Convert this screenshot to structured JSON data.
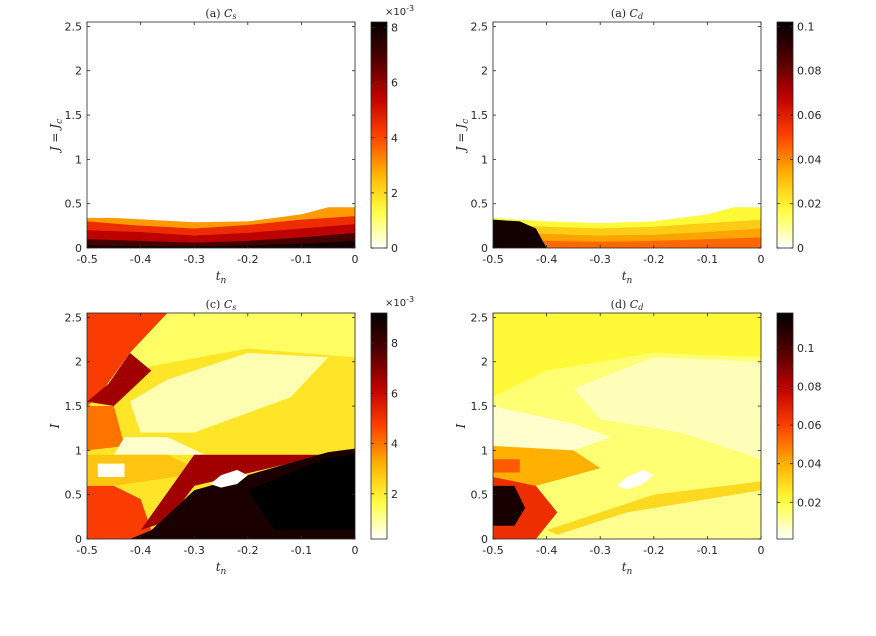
{
  "colormap": "hot-reversed",
  "colormap_stops": [
    "#ffffff",
    "#ffff3c",
    "#ffb000",
    "#ff4000",
    "#c00000",
    "#500000",
    "#000000"
  ],
  "chart_data": [
    {
      "type": "heatmap",
      "title": "(a) C_s",
      "title_main": "(a) ",
      "title_var": "C",
      "title_sub": "s",
      "xlabel_main": "t",
      "xlabel_sub": "n",
      "ylabel": "J = J_c",
      "ylabel_main": "J = J",
      "ylabel_sub": "c",
      "xlim": [
        -0.5,
        0
      ],
      "ylim": [
        0,
        2.55
      ],
      "xticks": [
        "-0.5",
        "-0.4",
        "-0.3",
        "-0.2",
        "-0.1",
        "0"
      ],
      "xtick_values": [
        -0.5,
        -0.4,
        -0.3,
        -0.2,
        -0.1,
        0
      ],
      "yticks": [
        "0",
        "0.5",
        "1",
        "1.5",
        "2",
        "2.5"
      ],
      "ytick_values": [
        0,
        0.5,
        1,
        1.5,
        2,
        2.5
      ],
      "colorbar": {
        "range": [
          0,
          0.0082
        ],
        "ticks": [
          "0",
          "2",
          "4",
          "6",
          "8"
        ],
        "tick_values": [
          0,
          0.002,
          0.004,
          0.006,
          0.008
        ],
        "multiplier": "×10",
        "multiplier_exp": "-3"
      },
      "bands": [
        {
          "x": [
            -0.5,
            -0.45,
            -0.3,
            -0.2,
            -0.1,
            -0.05,
            0
          ],
          "y": [
            0.34,
            0.34,
            0.29,
            0.3,
            0.38,
            0.46,
            0.46
          ],
          "value": 0.003
        },
        {
          "x": [
            -0.5,
            -0.42,
            -0.3,
            -0.2,
            -0.1,
            0
          ],
          "y": [
            0.3,
            0.26,
            0.22,
            0.26,
            0.32,
            0.36
          ],
          "value": 0.0045
        },
        {
          "x": [
            -0.5,
            -0.4,
            -0.3,
            -0.2,
            -0.1,
            0
          ],
          "y": [
            0.2,
            0.18,
            0.14,
            0.17,
            0.22,
            0.27
          ],
          "value": 0.0055
        },
        {
          "x": [
            -0.5,
            -0.4,
            -0.3,
            -0.2,
            -0.1,
            0
          ],
          "y": [
            0.1,
            0.08,
            0.06,
            0.08,
            0.12,
            0.17
          ],
          "value": 0.007
        },
        {
          "x": [
            -0.5,
            -0.4,
            -0.3,
            -0.2,
            -0.1,
            0
          ],
          "y": [
            0.03,
            0.02,
            0.02,
            0.03,
            0.05,
            0.08
          ],
          "value": 0.0079
        }
      ]
    },
    {
      "type": "heatmap",
      "title": "(a) C_d",
      "title_main": "(a) ",
      "title_var": "C",
      "title_sub": "d",
      "xlabel_main": "t",
      "xlabel_sub": "n",
      "ylabel": "J = J_c",
      "ylabel_main": "J = J",
      "ylabel_sub": "c",
      "xlim": [
        -0.5,
        0
      ],
      "ylim": [
        0,
        2.55
      ],
      "xticks": [
        "-0.5",
        "-0.4",
        "-0.3",
        "-0.2",
        "-0.1",
        "0"
      ],
      "xtick_values": [
        -0.5,
        -0.4,
        -0.3,
        -0.2,
        -0.1,
        0
      ],
      "yticks": [
        "0",
        "0.5",
        "1",
        "1.5",
        "2",
        "2.5"
      ],
      "ytick_values": [
        0,
        0.5,
        1,
        1.5,
        2,
        2.5
      ],
      "colorbar": {
        "range": [
          0,
          0.102
        ],
        "ticks": [
          "0",
          "0.02",
          "0.04",
          "0.06",
          "0.08",
          "0.1"
        ],
        "tick_values": [
          0,
          0.02,
          0.04,
          0.06,
          0.08,
          0.1
        ],
        "multiplier": "",
        "multiplier_exp": ""
      },
      "bands": [
        {
          "x": [
            -0.5,
            -0.4,
            -0.3,
            -0.2,
            -0.1,
            -0.05,
            0
          ],
          "y": [
            0.34,
            0.3,
            0.28,
            0.3,
            0.38,
            0.46,
            0.46
          ],
          "value": 0.018
        },
        {
          "x": [
            -0.5,
            -0.4,
            -0.3,
            -0.2,
            -0.1,
            0
          ],
          "y": [
            0.27,
            0.24,
            0.22,
            0.24,
            0.28,
            0.32
          ],
          "value": 0.028
        },
        {
          "x": [
            -0.5,
            -0.4,
            -0.3,
            -0.2,
            -0.1,
            0
          ],
          "y": [
            0.18,
            0.16,
            0.14,
            0.15,
            0.18,
            0.22
          ],
          "value": 0.036
        },
        {
          "x": [
            -0.5,
            -0.4,
            -0.3,
            -0.2,
            -0.1,
            0
          ],
          "y": [
            0.09,
            0.08,
            0.07,
            0.08,
            0.1,
            0.12
          ],
          "value": 0.045
        },
        {
          "x": [
            -0.5,
            -0.45,
            -0.42,
            -0.4,
            -0.5
          ],
          "y": [
            0.32,
            0.3,
            0.22,
            0.0,
            0.0
          ],
          "value": 0.098,
          "closed": true
        }
      ]
    },
    {
      "type": "heatmap",
      "title": "(c) C_s",
      "title_main": "(c) ",
      "title_var": "C",
      "title_sub": "s",
      "xlabel_main": "t",
      "xlabel_sub": "n",
      "ylabel": "I",
      "ylabel_main": "I",
      "ylabel_sub": "",
      "xlim": [
        -0.5,
        0
      ],
      "ylim": [
        0,
        2.55
      ],
      "xticks": [
        "-0.5",
        "-0.4",
        "-0.3",
        "-0.2",
        "-0.1",
        "0"
      ],
      "xtick_values": [
        -0.5,
        -0.4,
        -0.3,
        -0.2,
        -0.1,
        0
      ],
      "yticks": [
        "0",
        "0.5",
        "1",
        "1.5",
        "2",
        "2.5"
      ],
      "ytick_values": [
        0,
        0.5,
        1,
        1.5,
        2,
        2.5
      ],
      "colorbar": {
        "range": [
          0.0002,
          0.0092
        ],
        "ticks": [
          "2",
          "4",
          "6",
          "8"
        ],
        "tick_values": [
          0.002,
          0.004,
          0.006,
          0.008
        ],
        "multiplier": "×10",
        "multiplier_exp": "-3"
      },
      "background_value": 0.0022,
      "regions": [
        {
          "points": [
            [
              -0.5,
              2.55
            ],
            [
              0,
              2.55
            ],
            [
              0,
              2.05
            ],
            [
              -0.2,
              2.15
            ],
            [
              -0.38,
              1.95
            ],
            [
              -0.5,
              1.5
            ]
          ],
          "value": 0.0014
        },
        {
          "points": [
            [
              -0.5,
              2.55
            ],
            [
              -0.35,
              2.55
            ],
            [
              -0.42,
              2.1
            ],
            [
              -0.48,
              1.6
            ],
            [
              -0.5,
              1.5
            ]
          ],
          "value": 0.0048
        },
        {
          "points": [
            [
              -0.5,
              1.55
            ],
            [
              -0.46,
              1.75
            ],
            [
              -0.42,
              2.1
            ],
            [
              -0.38,
              1.9
            ],
            [
              -0.45,
              1.5
            ]
          ],
          "value": 0.0066
        },
        {
          "points": [
            [
              -0.5,
              1.5
            ],
            [
              -0.45,
              1.5
            ],
            [
              -0.43,
              1.05
            ],
            [
              -0.5,
              1.0
            ]
          ],
          "value": 0.004
        },
        {
          "points": [
            [
              -0.42,
              1.55
            ],
            [
              -0.35,
              1.8
            ],
            [
              -0.2,
              2.1
            ],
            [
              -0.05,
              2.05
            ],
            [
              -0.12,
              1.6
            ],
            [
              -0.3,
              1.2
            ],
            [
              -0.4,
              1.2
            ]
          ],
          "value": 0.0008
        },
        {
          "points": [
            [
              -0.43,
              1.15
            ],
            [
              -0.35,
              1.15
            ],
            [
              -0.28,
              0.95
            ],
            [
              -0.45,
              0.95
            ]
          ],
          "value": 0.0006
        },
        {
          "points": [
            [
              -0.5,
              0.95
            ],
            [
              -0.35,
              0.95
            ],
            [
              -0.28,
              0.75
            ],
            [
              -0.45,
              0.6
            ],
            [
              -0.5,
              0.6
            ]
          ],
          "value": 0.0028
        },
        {
          "points": [
            [
              -0.48,
              0.85
            ],
            [
              -0.43,
              0.85
            ],
            [
              -0.43,
              0.7
            ],
            [
              -0.48,
              0.7
            ]
          ],
          "value": 0.0003
        },
        {
          "points": [
            [
              -0.5,
              0.6
            ],
            [
              -0.45,
              0.6
            ],
            [
              -0.4,
              0.45
            ],
            [
              -0.38,
              0.1
            ],
            [
              -0.42,
              0.0
            ],
            [
              -0.5,
              0.0
            ]
          ],
          "value": 0.0048
        },
        {
          "points": [
            [
              -0.2,
              0.95
            ],
            [
              -0.05,
              0.95
            ],
            [
              -0.02,
              1.0
            ],
            [
              -0.3,
              0.6
            ],
            [
              -0.35,
              0.2
            ],
            [
              -0.4,
              0.1
            ],
            [
              -0.3,
              0.95
            ]
          ],
          "value": 0.0066
        },
        {
          "points": [
            [
              -0.42,
              0.0
            ],
            [
              0,
              0.0
            ],
            [
              0,
              1.02
            ],
            [
              -0.05,
              0.98
            ],
            [
              -0.3,
              0.55
            ],
            [
              -0.38,
              0.1
            ]
          ],
          "value": 0.0087
        },
        {
          "points": [
            [
              -0.15,
              0.1
            ],
            [
              0,
              0.1
            ],
            [
              0,
              0.95
            ],
            [
              -0.05,
              0.92
            ],
            [
              -0.2,
              0.55
            ]
          ],
          "value": 0.0092
        },
        {
          "points": [
            [
              -0.27,
              0.62
            ],
            [
              -0.25,
              0.72
            ],
            [
              -0.22,
              0.78
            ],
            [
              -0.2,
              0.72
            ],
            [
              -0.22,
              0.62
            ],
            [
              -0.25,
              0.58
            ]
          ],
          "value": 0.0001
        }
      ]
    },
    {
      "type": "heatmap",
      "title": "(d) C_d",
      "title_main": "(d) ",
      "title_var": "C",
      "title_sub": "d",
      "xlabel_main": "t",
      "xlabel_sub": "n",
      "ylabel": "I",
      "ylabel_main": "I",
      "ylabel_sub": "",
      "xlim": [
        -0.5,
        0
      ],
      "ylim": [
        0,
        2.55
      ],
      "xticks": [
        "-0.5",
        "-0.4",
        "-0.3",
        "-0.2",
        "-0.1",
        "0"
      ],
      "xtick_values": [
        -0.5,
        -0.4,
        -0.3,
        -0.2,
        -0.1,
        0
      ],
      "yticks": [
        "0",
        "0.5",
        "1",
        "1.5",
        "2",
        "2.5"
      ],
      "ytick_values": [
        0,
        0.5,
        1,
        1.5,
        2,
        2.5
      ],
      "colorbar": {
        "range": [
          0.001,
          0.118
        ],
        "ticks": [
          "0.02",
          "0.04",
          "0.06",
          "0.08",
          "0.1"
        ],
        "tick_values": [
          0.02,
          0.04,
          0.06,
          0.08,
          0.1
        ],
        "multiplier": "",
        "multiplier_exp": ""
      },
      "background_value": 0.015,
      "regions": [
        {
          "points": [
            [
              -0.5,
              2.55
            ],
            [
              0,
              2.55
            ],
            [
              0,
              2.05
            ],
            [
              -0.2,
              2.1
            ],
            [
              -0.4,
              1.9
            ],
            [
              -0.5,
              1.6
            ]
          ],
          "value": 0.022
        },
        {
          "points": [
            [
              -0.35,
              1.7
            ],
            [
              -0.2,
              2.05
            ],
            [
              0,
              2.0
            ],
            [
              0,
              0.9
            ],
            [
              -0.15,
              1.2
            ],
            [
              -0.3,
              1.35
            ]
          ],
          "value": 0.008
        },
        {
          "points": [
            [
              -0.5,
              1.5
            ],
            [
              -0.35,
              1.3
            ],
            [
              -0.28,
              1.15
            ],
            [
              -0.35,
              1.0
            ],
            [
              -0.5,
              1.05
            ]
          ],
          "value": 0.006
        },
        {
          "points": [
            [
              -0.5,
              1.05
            ],
            [
              -0.35,
              1.0
            ],
            [
              -0.3,
              0.8
            ],
            [
              -0.42,
              0.6
            ],
            [
              -0.5,
              0.7
            ]
          ],
          "value": 0.04
        },
        {
          "points": [
            [
              -0.5,
              0.9
            ],
            [
              -0.45,
              0.9
            ],
            [
              -0.45,
              0.75
            ],
            [
              -0.5,
              0.75
            ]
          ],
          "value": 0.055
        },
        {
          "points": [
            [
              -0.5,
              0.7
            ],
            [
              -0.42,
              0.6
            ],
            [
              -0.38,
              0.3
            ],
            [
              -0.42,
              0.0
            ],
            [
              -0.5,
              0.0
            ]
          ],
          "value": 0.065
        },
        {
          "points": [
            [
              -0.5,
              0.6
            ],
            [
              -0.46,
              0.6
            ],
            [
              -0.44,
              0.35
            ],
            [
              -0.46,
              0.15
            ],
            [
              -0.5,
              0.15
            ]
          ],
          "value": 0.112
        },
        {
          "points": [
            [
              -0.4,
              0.0
            ],
            [
              0,
              0.0
            ],
            [
              0,
              0.6
            ],
            [
              -0.25,
              0.35
            ],
            [
              -0.38,
              0.15
            ]
          ],
          "value": 0.012
        },
        {
          "points": [
            [
              -0.4,
              0.1
            ],
            [
              -0.2,
              0.5
            ],
            [
              0,
              0.65
            ],
            [
              0,
              0.55
            ],
            [
              -0.25,
              0.3
            ],
            [
              -0.38,
              0.05
            ]
          ],
          "value": 0.03
        },
        {
          "points": [
            [
              -0.27,
              0.6
            ],
            [
              -0.25,
              0.7
            ],
            [
              -0.22,
              0.78
            ],
            [
              -0.2,
              0.72
            ],
            [
              -0.22,
              0.62
            ],
            [
              -0.25,
              0.56
            ]
          ],
          "value": 0.001
        }
      ]
    }
  ]
}
